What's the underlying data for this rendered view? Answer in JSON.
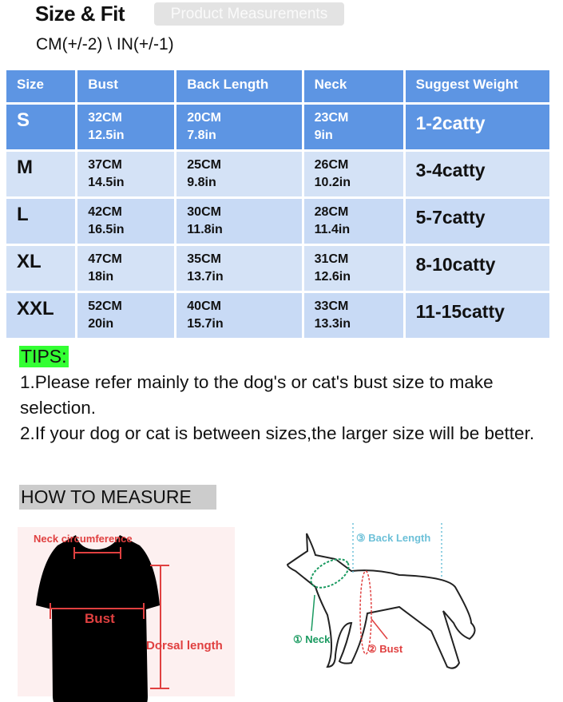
{
  "header": {
    "title": "Size & Fit",
    "tag": "Product Measurements",
    "units": "CM(+/-2) \\ IN(+/-1)"
  },
  "table": {
    "columns": [
      "Size",
      "Bust",
      "Back Length",
      "Neck",
      "Suggest Weight"
    ],
    "rows": [
      {
        "size": "S",
        "bust_cm": "32CM",
        "bust_in": "12.5in",
        "back_cm": "20CM",
        "back_in": "7.8in",
        "neck_cm": "23CM",
        "neck_in": "9in",
        "weight": "1-2catty"
      },
      {
        "size": "M",
        "bust_cm": "37CM",
        "bust_in": "14.5in",
        "back_cm": "25CM",
        "back_in": "9.8in",
        "neck_cm": "26CM",
        "neck_in": "10.2in",
        "weight": "3-4catty"
      },
      {
        "size": "L",
        "bust_cm": "42CM",
        "bust_in": "16.5in",
        "back_cm": "30CM",
        "back_in": "11.8in",
        "neck_cm": "28CM",
        "neck_in": "11.4in",
        "weight": "5-7catty"
      },
      {
        "size": "XL",
        "bust_cm": "47CM",
        "bust_in": "18in",
        "back_cm": "35CM",
        "back_in": "13.7in",
        "neck_cm": "31CM",
        "neck_in": "12.6in",
        "weight": "8-10catty"
      },
      {
        "size": "XXL",
        "bust_cm": "52CM",
        "bust_in": "20in",
        "back_cm": "40CM",
        "back_in": "15.7in",
        "neck_cm": "33CM",
        "neck_in": "13.3in",
        "weight": "11-15catty"
      }
    ]
  },
  "tips": {
    "label": "TIPS:",
    "line1": "1.Please refer mainly to the dog's or cat's  bust size to make selection.",
    "line2": "2.If your dog or cat is between sizes,the larger size will be better."
  },
  "measure": {
    "heading": "HOW TO MEASURE",
    "shirt": {
      "neck": "Neck circumference",
      "bust": "Bust",
      "dorsal": "Dorsal length"
    },
    "dog": {
      "neck": "① Neck",
      "bust": "② Bust",
      "back": "③ Back Length"
    }
  },
  "colors": {
    "header_blue": "#5d95e3",
    "row_light": "#d4e2f6",
    "tips_green": "#33ff33",
    "measure_red": "#e04040",
    "neck_green": "#1a9a60",
    "back_cyan": "#6cc0d8"
  }
}
